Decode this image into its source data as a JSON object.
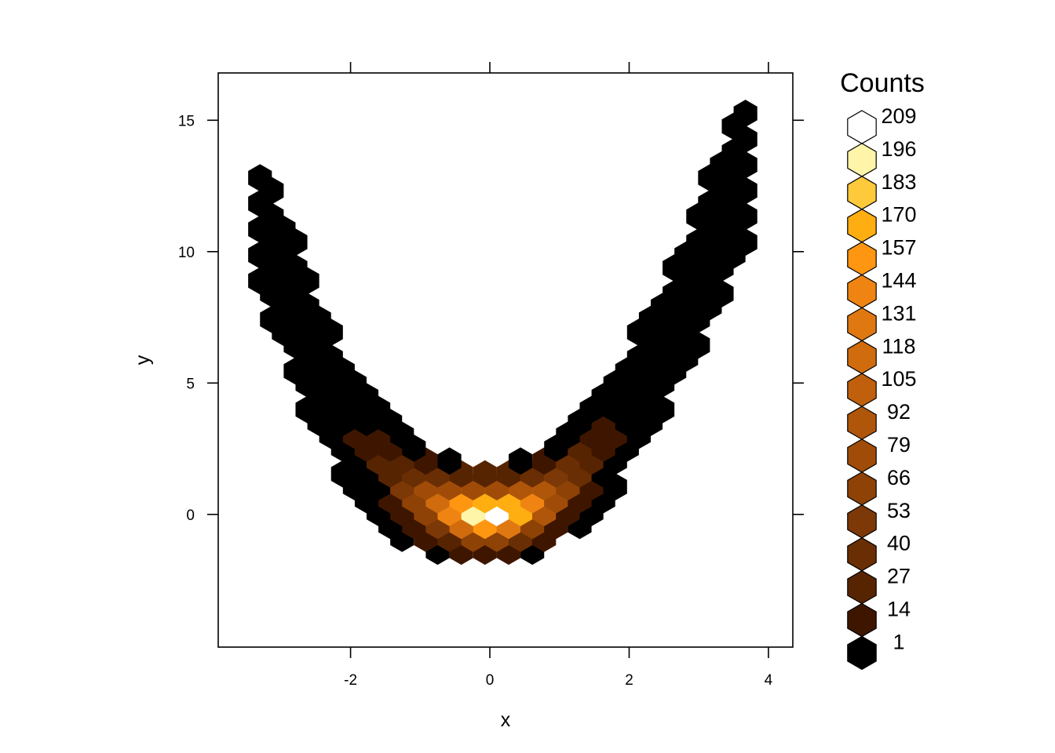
{
  "chart_data": {
    "type": "hexbin",
    "xlabel": "x",
    "ylabel": "y",
    "xlim": [
      -3.9,
      4.35
    ],
    "ylim": [
      -5.05,
      16.8
    ],
    "x_ticks": [
      -2,
      0,
      2,
      4
    ],
    "y_ticks": [
      0,
      5,
      10,
      15
    ],
    "x_tick_labels": [
      "-2",
      "0",
      "2",
      "4"
    ],
    "y_tick_labels": [
      "0",
      "5",
      "10",
      "15"
    ],
    "legend": {
      "title": "Counts",
      "placement": "right",
      "levels": [
        {
          "label": "209",
          "color": "#ffffff"
        },
        {
          "label": "196",
          "color": "#fff5a8"
        },
        {
          "label": "183",
          "color": "#ffc93c"
        },
        {
          "label": "170",
          "color": "#ffae12"
        },
        {
          "label": "157",
          "color": "#ff9612"
        },
        {
          "label": "144",
          "color": "#f08412"
        },
        {
          "label": "131",
          "color": "#e07812"
        },
        {
          "label": "118",
          "color": "#d06c0e"
        },
        {
          "label": "105",
          "color": "#c0600c"
        },
        {
          "label": "92",
          "color": "#b0560a"
        },
        {
          "label": "79",
          "color": "#a04c08"
        },
        {
          "label": "66",
          "color": "#8e4206"
        },
        {
          "label": "53",
          "color": "#7c3806"
        },
        {
          "label": "40",
          "color": "#6a2e04"
        },
        {
          "label": "27",
          "color": "#572402"
        },
        {
          "label": "14",
          "color": "#3e1600"
        },
        {
          "label": "1",
          "color": "#000000"
        }
      ]
    },
    "bin_width_x": 0.34,
    "bin_height_y": 0.98,
    "series": [
      {
        "x": [
          -3.3,
          -3.1,
          -2.9,
          -2.8,
          -2.7,
          -2.6,
          -2.5,
          -2.4,
          -2.3,
          -2.2,
          -2.1,
          -2.0,
          -1.9,
          -1.8,
          -1.7,
          -1.6,
          -1.5,
          -1.4,
          -1.3,
          -1.2,
          -1.1,
          -1.0,
          -0.9,
          -0.8,
          -0.7,
          -0.6,
          -0.5,
          -0.4,
          -0.3,
          -0.2,
          -0.1,
          0.0,
          0.1,
          0.2,
          0.3,
          0.4,
          0.5,
          0.6,
          0.7,
          0.8,
          0.9,
          1.0,
          1.1,
          1.2,
          1.3,
          1.4,
          1.5,
          1.6,
          1.7,
          1.8,
          1.9,
          2.0,
          2.1,
          2.2,
          2.3,
          2.4,
          2.5,
          2.6,
          2.7,
          2.8,
          2.9,
          3.0,
          3.1,
          3.3,
          3.5,
          3.7,
          3.8
        ],
        "y": [
          10.9,
          9.6,
          8.4,
          7.8,
          7.1,
          6.4,
          5.8,
          5.2,
          4.7,
          4.2,
          3.8,
          3.4,
          3.0,
          2.7,
          2.4,
          2.1,
          1.8,
          1.6,
          1.3,
          1.1,
          0.9,
          0.7,
          0.6,
          0.5,
          0.4,
          0.3,
          0.25,
          0.2,
          0.15,
          0.1,
          0.1,
          0.1,
          0.1,
          0.15,
          0.2,
          0.25,
          0.3,
          0.4,
          0.5,
          0.6,
          0.8,
          1.0,
          1.2,
          1.4,
          1.7,
          2.0,
          2.3,
          2.6,
          2.9,
          3.3,
          3.7,
          4.1,
          4.5,
          5.0,
          5.4,
          5.9,
          6.4,
          6.9,
          7.4,
          8.0,
          8.6,
          9.2,
          9.7,
          10.9,
          12.1,
          13.4,
          14.5
        ]
      }
    ]
  }
}
